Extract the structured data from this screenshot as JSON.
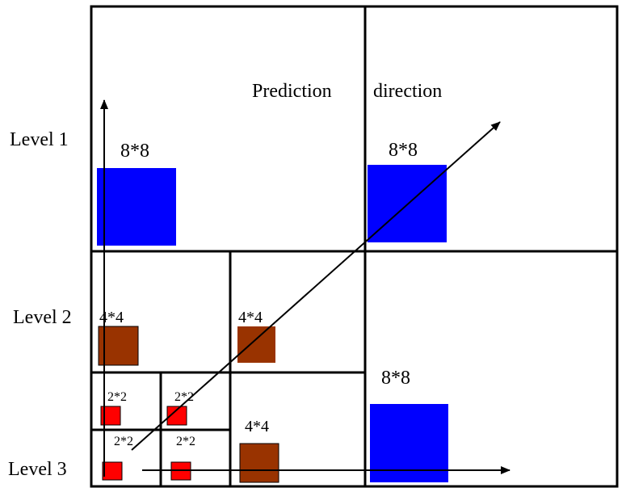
{
  "labels": {
    "level1": "Level 1",
    "level2": "Level 2",
    "level3": "Level 3",
    "prediction": "Prediction",
    "direction": "direction"
  },
  "blocks": {
    "b8_level1_left": "8*8",
    "b8_level1_right": "8*8",
    "b8_level3": "8*8",
    "b4_a": "4*4",
    "b4_b": "4*4",
    "b4_c": "4*4",
    "b2_a": "2*2",
    "b2_b": "2*2",
    "b2_c": "2*2",
    "b2_d": "2*2"
  },
  "colors": {
    "block8": "#0000ff",
    "block4": "#993300",
    "block2": "#ff0000",
    "lines": "#000000"
  }
}
